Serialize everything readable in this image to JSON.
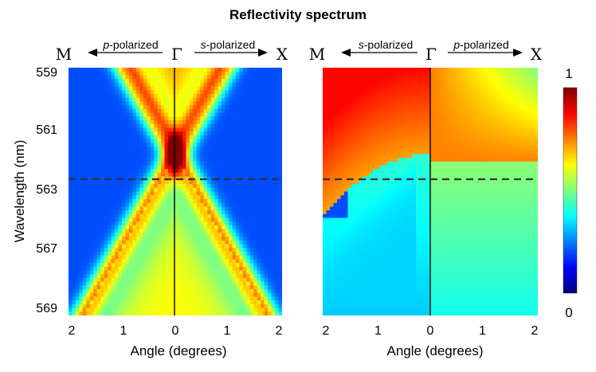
{
  "chart_data": {
    "type": "heatmap",
    "title": "Reflectivity spectrum",
    "colorscale": "jet",
    "colorbar": {
      "min": 0,
      "max": 1,
      "min_label": "0",
      "max_label": "1",
      "colors": [
        "#00007f",
        "#0000ff",
        "#0080ff",
        "#00ffff",
        "#80ff80",
        "#ffff00",
        "#ff8000",
        "#ff0000",
        "#7f0000"
      ]
    },
    "ylabel": "Wavelength (nm)",
    "ylim": [
      559,
      569
    ],
    "yticks": [
      "559",
      "561",
      "563",
      "567",
      "569"
    ],
    "dashed_line_wavelength": 562.5,
    "panels": [
      {
        "name": "left",
        "xlabel": "Angle (degrees)",
        "xticks": [
          "2",
          "1",
          "0",
          "1",
          "2"
        ],
        "xlim": [
          -2,
          2
        ],
        "left_symbol": "M",
        "right_symbol": "X",
        "center_symbol": "Γ",
        "left_pol_italic": "p",
        "left_pol_rest": "-polarized",
        "right_pol_italic": "s",
        "right_pol_rest": "-polarized",
        "description": "Two crossing dispersive bands forming an X centred near Γ at ~562.5 nm"
      },
      {
        "name": "right",
        "xlabel": "Angle (degrees)",
        "xticks": [
          "2",
          "1",
          "0",
          "1",
          "2"
        ],
        "xlim": [
          -2,
          2
        ],
        "left_symbol": "M",
        "right_symbol": "X",
        "center_symbol": "Γ",
        "left_pol_italic": "s",
        "left_pol_rest": "-polarized",
        "right_pol_italic": "p",
        "right_pol_rest": "-polarized",
        "description": "High reflectivity above ~562.5 nm, low green/cyan below; left side shows a curved band"
      }
    ]
  }
}
